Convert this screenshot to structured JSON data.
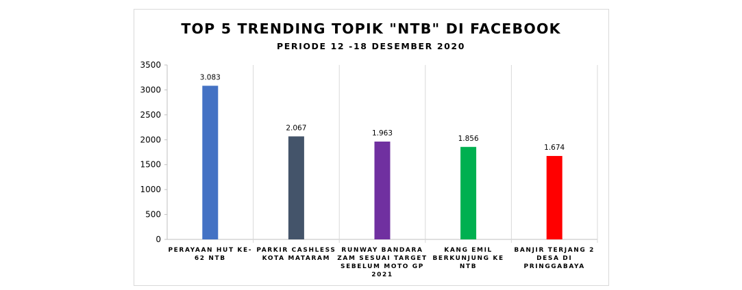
{
  "chart_data": {
    "type": "bar",
    "title": "TOP 5 TRENDING TOPIK \"NTB\" DI FACEBOOK",
    "subtitle": "PERIODE 12 -18 DESEMBER 2020",
    "categories": [
      [
        "PERAYAAN HUT KE-",
        "62 NTB"
      ],
      [
        "PARKIR CASHLESS",
        "KOTA MATARAM"
      ],
      [
        "RUNWAY BANDARA",
        "ZAM SESUAI TARGET",
        "SEBELUM MOTO GP",
        "2021"
      ],
      [
        "KANG EMIL",
        "BERKUNJUNG KE",
        "NTB"
      ],
      [
        "BANJIR TERJANG 2",
        "DESA DI",
        "PRINGGABAYA"
      ]
    ],
    "values": [
      3083,
      2067,
      1963,
      1856,
      1674
    ],
    "data_labels": [
      "3.083",
      "2.067",
      "1.963",
      "1.856",
      "1.674"
    ],
    "colors": [
      "#4472c4",
      "#44546a",
      "#7030a0",
      "#00b050",
      "#ff0000"
    ],
    "ylim": [
      0,
      3500
    ],
    "yticks": [
      0,
      500,
      1000,
      1500,
      2000,
      2500,
      3000,
      3500
    ],
    "grid": "vertical-category-separators",
    "legend": "none"
  }
}
